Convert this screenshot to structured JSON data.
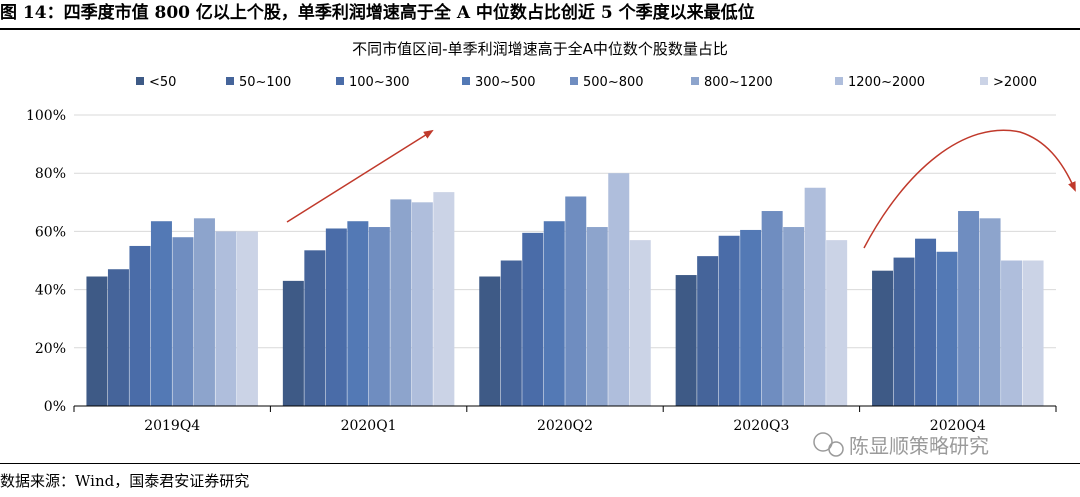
{
  "figure": {
    "title": "图 14：四季度市值 800 亿以上个股，单季利润增速高于全 A 中位数占比创近 5 个季度以来最低位",
    "source": "数据来源：Wind，国泰君安证券研究",
    "watermark": "陈显顺策略研究"
  },
  "chart_data": {
    "type": "bar",
    "title": "不同市值区间-单季利润增速高于全A中位数个股数量占比",
    "categories": [
      "2019Q4",
      "2020Q1",
      "2020Q2",
      "2020Q3",
      "2020Q4"
    ],
    "series": [
      {
        "name": "<50",
        "color": "#3e5a86",
        "values": [
          44.5,
          43.0,
          44.5,
          45.0,
          46.5
        ]
      },
      {
        "name": "50~100",
        "color": "#45649a",
        "values": [
          47.0,
          53.5,
          50.0,
          51.5,
          51.0
        ]
      },
      {
        "name": "100~300",
        "color": "#4a6ca8",
        "values": [
          55.0,
          61.0,
          59.5,
          58.5,
          57.5
        ]
      },
      {
        "name": "300~500",
        "color": "#5379b5",
        "values": [
          63.5,
          63.5,
          63.5,
          60.5,
          53.0
        ]
      },
      {
        "name": "500~800",
        "color": "#6f8dc0",
        "values": [
          58.0,
          61.5,
          72.0,
          67.0,
          67.0
        ]
      },
      {
        "name": "800~1200",
        "color": "#8da4cc",
        "values": [
          64.5,
          71.0,
          61.5,
          61.5,
          64.5
        ]
      },
      {
        "name": "1200~2000",
        "color": "#afbedc",
        "values": [
          60.0,
          70.0,
          80.0,
          75.0,
          50.0
        ]
      },
      {
        "name": ">2000",
        "color": "#cbd3e6",
        "values": [
          60.0,
          73.5,
          57.0,
          57.0,
          50.0
        ]
      }
    ],
    "ylim": [
      0,
      100
    ],
    "yticks": [
      "0%",
      "20%",
      "40%",
      "60%",
      "80%",
      "100%"
    ],
    "grid": true,
    "legend_position": "top"
  }
}
